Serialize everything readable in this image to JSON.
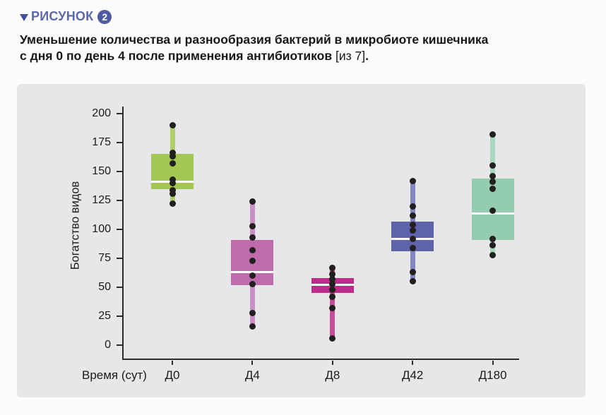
{
  "figure_header": {
    "label": "РИСУНОК",
    "number": "2",
    "accent_color": "#5c68ae",
    "badge_color": "#4f5ca5"
  },
  "caption": {
    "line1": "Уменьшение количества и разнообразия бактерий в микробиоте кишечника",
    "line2_bold": "с дня 0 по день 4 после применения антибиотиков ",
    "line2_ref": "[из 7]",
    "line2_period": "."
  },
  "chart_data": {
    "type": "boxplot",
    "xlabel": "Время (сут)",
    "ylabel": "Богатство видов",
    "ylim": [
      0,
      200
    ],
    "yticks": [
      0,
      25,
      50,
      75,
      100,
      125,
      150,
      175,
      200
    ],
    "categories": [
      "Д0",
      "Д4",
      "Д8",
      "Д42",
      "Д180"
    ],
    "groups": [
      {
        "label": "Д0",
        "box_color": "#a3c752",
        "whisker_color": "#b2d06a",
        "q1": 135,
        "q3": 165,
        "median": 141,
        "low": 122,
        "high": 190,
        "points": [
          190,
          166,
          163,
          157,
          143,
          140,
          134,
          131,
          122
        ]
      },
      {
        "label": "Д4",
        "box_color": "#bf6cae",
        "whisker_color": "#c890c5",
        "q1": 52,
        "q3": 91,
        "median": 63,
        "low": 16,
        "high": 124,
        "points": [
          124,
          103,
          93,
          82,
          73,
          60,
          53,
          28,
          16
        ]
      },
      {
        "label": "Д8",
        "box_color": "#bd2c89",
        "whisker_color": "#c44d9c",
        "q1": 45,
        "q3": 58,
        "median": 52,
        "low": 6,
        "high": 67,
        "points": [
          67,
          61,
          57,
          53,
          48,
          42,
          32,
          6
        ]
      },
      {
        "label": "Д42",
        "box_color": "#5f63ac",
        "whisker_color": "#8287c4",
        "q1": 81,
        "q3": 107,
        "median": 92,
        "low": 55,
        "high": 142,
        "points": [
          142,
          120,
          112,
          104,
          99,
          92,
          84,
          63,
          55
        ]
      },
      {
        "label": "Д180",
        "box_color": "#93ccae",
        "whisker_color": "#aad7bf",
        "q1": 91,
        "q3": 144,
        "median": 114,
        "low": 78,
        "high": 182,
        "points": [
          182,
          155,
          146,
          141,
          135,
          116,
          92,
          86,
          78
        ]
      }
    ],
    "point_color": "#221f1f",
    "axis_color": "#2b2b2b",
    "panel_bg": "#e7e7ea"
  }
}
